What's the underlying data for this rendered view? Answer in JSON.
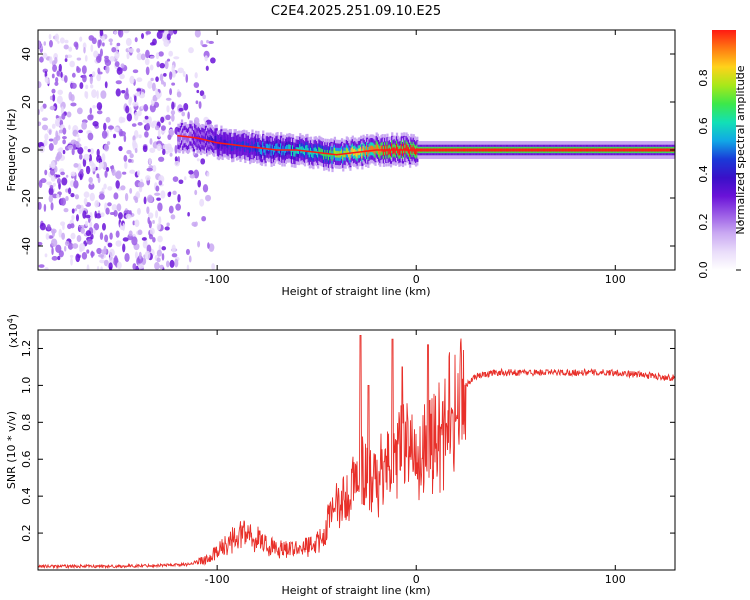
{
  "title": "C2E4.2025.251.09.10.E25",
  "colors": {
    "snr_line": "#e8302a",
    "heat_ramp": [
      "#ffffff",
      "#e9dcfa",
      "#c9a8f2",
      "#9b5ce6",
      "#6a12d8",
      "#3a10c8",
      "#1a3ad8",
      "#11a8e6",
      "#12e0b6",
      "#3ce84a",
      "#a8e81a",
      "#ffd21a",
      "#ff7a12",
      "#ff1a12"
    ]
  },
  "chart_data": [
    {
      "type": "heatmap",
      "name": "spectrogram",
      "xlabel": "Height of straight line (km)",
      "ylabel": "Frequency (Hz)",
      "xlim": [
        -190,
        130
      ],
      "ylim": [
        -50,
        50
      ],
      "x_ticks": [
        -100,
        0,
        100
      ],
      "x_tick_labels": [
        "-100",
        "0",
        "100"
      ],
      "y_ticks": [
        -40,
        -20,
        0,
        20,
        40
      ],
      "y_tick_labels": [
        "-40",
        "-20",
        "0",
        "20",
        "40"
      ],
      "colorbar": {
        "label": "Normalized spectral amplitude",
        "range": [
          0,
          1
        ],
        "ticks": [
          0,
          0.2,
          0.4,
          0.6,
          0.8
        ],
        "tick_labels": [
          "0.0",
          "0.2",
          "0.4",
          "0.6",
          "0.8"
        ]
      },
      "ridge": {
        "description": "frequency of the strongest component vs height",
        "x": [
          -120,
          -110,
          -100,
          -90,
          -80,
          -70,
          -60,
          -50,
          -40,
          -30,
          -20,
          -10,
          0,
          10,
          20,
          40,
          60,
          80,
          100,
          130
        ],
        "y": [
          6,
          5,
          3,
          2,
          1,
          0,
          0,
          -1,
          -2,
          -1,
          0,
          0,
          0,
          0,
          0,
          0,
          0,
          0,
          0,
          0
        ],
        "amplitude": [
          0.2,
          0.3,
          0.4,
          0.45,
          0.5,
          0.55,
          0.6,
          0.65,
          0.75,
          0.85,
          0.95,
          1.0,
          1.0,
          1.0,
          1.0,
          1.0,
          1.0,
          1.0,
          1.0,
          1.0
        ]
      },
      "noise_region": {
        "x_from": -190,
        "x_to": -110,
        "amplitude": 0.2
      }
    },
    {
      "type": "line",
      "name": "snr",
      "xlabel": "Height of straight line (km)",
      "ylabel": "SNR (10 * v/v)",
      "y_multiplier": "(x10",
      "y_multiplier_exp": "4",
      "y_multiplier_close": ")",
      "xlim": [
        -190,
        130
      ],
      "ylim": [
        0,
        1.3
      ],
      "x_ticks": [
        -100,
        0,
        100
      ],
      "x_tick_labels": [
        "-100",
        "0",
        "100"
      ],
      "y_ticks": [
        0.2,
        0.4,
        0.6,
        0.8,
        1.0,
        1.2
      ],
      "y_tick_labels": [
        "0.2",
        "0.4",
        "0.6",
        "0.8",
        "1.0",
        "1.2"
      ],
      "series": [
        {
          "name": "SNR",
          "x": [
            -190,
            -170,
            -150,
            -130,
            -115,
            -105,
            -95,
            -88,
            -80,
            -70,
            -60,
            -50,
            -45,
            -40,
            -35,
            -30,
            -27,
            -25,
            -20,
            -15,
            -10,
            -5,
            0,
            5,
            10,
            15,
            20,
            25,
            30,
            40,
            50,
            60,
            70,
            80,
            90,
            100,
            110,
            120,
            130
          ],
          "y": [
            0.02,
            0.02,
            0.02,
            0.025,
            0.03,
            0.06,
            0.15,
            0.22,
            0.18,
            0.12,
            0.12,
            0.15,
            0.25,
            0.35,
            0.4,
            0.5,
            0.55,
            0.5,
            0.55,
            0.6,
            0.65,
            0.7,
            0.75,
            0.7,
            0.75,
            0.85,
            0.95,
            1.0,
            1.05,
            1.07,
            1.07,
            1.07,
            1.07,
            1.07,
            1.07,
            1.07,
            1.06,
            1.05,
            1.04
          ]
        }
      ],
      "spikes": {
        "x": [
          -28,
          -24,
          -12,
          -7,
          6
        ],
        "y": [
          1.27,
          1.0,
          1.25,
          1.1,
          1.22
        ]
      }
    }
  ]
}
